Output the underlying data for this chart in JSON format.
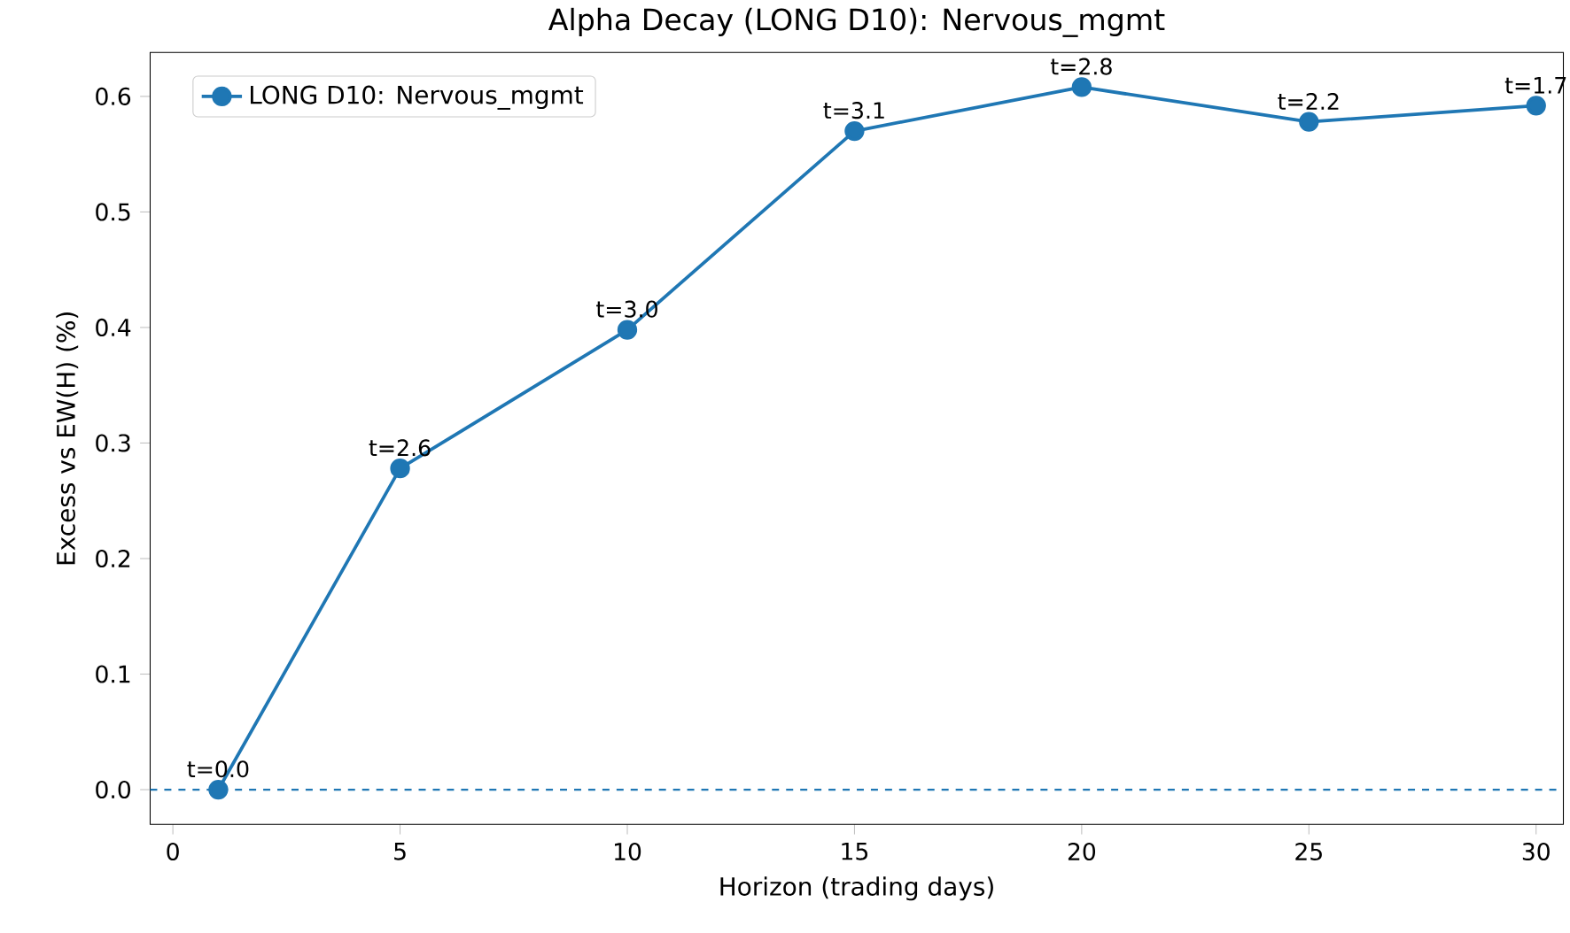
{
  "chart_data": {
    "type": "line",
    "title": "Alpha Decay (LONG D10): Nervous_mgmt",
    "xlabel": "Horizon (trading days)",
    "ylabel": "Excess vs EW(H) (%)",
    "x": [
      1,
      5,
      10,
      15,
      20,
      25,
      30
    ],
    "series": [
      {
        "name": "LONG D10: Nervous_mgmt",
        "color": "#1f77b4",
        "values": [
          0.0,
          0.278,
          0.398,
          0.57,
          0.608,
          0.578,
          0.592
        ]
      }
    ],
    "xlim": [
      -0.5,
      30.6
    ],
    "ylim": [
      -0.03,
      0.638
    ],
    "xticks": [
      0,
      5,
      10,
      15,
      20,
      25,
      30
    ],
    "yticks": [
      {
        "value": 0,
        "label": "0.0"
      },
      0.1,
      0.2,
      0.3,
      0.4,
      0.5,
      0.6
    ],
    "ref_lines": [
      {
        "axis": "y",
        "value": 0,
        "color": "#1f77b4",
        "line_style": "dashed"
      }
    ],
    "annotations": [
      {
        "text": "t=0.0",
        "x": 1,
        "y": 0.0
      },
      {
        "text": "t=2.6",
        "x": 5,
        "y": 0.278
      },
      {
        "text": "t=3.0",
        "x": 10,
        "y": 0.398
      },
      {
        "text": "t=3.1",
        "x": 15,
        "y": 0.57
      },
      {
        "text": "t=2.8",
        "x": 20,
        "y": 0.608
      },
      {
        "text": "t=2.2",
        "x": 25,
        "y": 0.578
      },
      {
        "text": "t=1.7",
        "x": 30,
        "y": 0.592
      }
    ],
    "legend": "top left",
    "marker": "circle",
    "line_style": "solid",
    "grid": false
  }
}
